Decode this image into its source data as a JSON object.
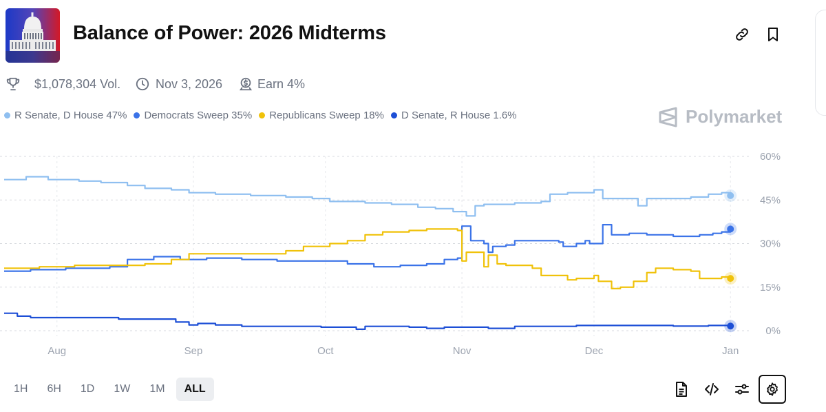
{
  "header": {
    "title": "Balance of Power: 2026 Midterms"
  },
  "meta": {
    "volume": "$1,078,304 Vol.",
    "date": "Nov 3, 2026",
    "earn": "Earn 4%"
  },
  "brand": {
    "name": "Polymarket"
  },
  "legend": [
    {
      "label": "R Senate, D House 47%",
      "color": "#8fbff0"
    },
    {
      "label": "Democrats Sweep 35%",
      "color": "#3b73e8"
    },
    {
      "label": "Republicans Sweep 18%",
      "color": "#f0c20a"
    },
    {
      "label": "D Senate, R House 1.6%",
      "color": "#1d4fd6"
    }
  ],
  "range_buttons": [
    "1H",
    "6H",
    "1D",
    "1W",
    "1M",
    "ALL"
  ],
  "range_active": "ALL",
  "chart_data": {
    "type": "line",
    "title": "Balance of Power: 2026 Midterms",
    "x_unit": "days since Jul 26",
    "x_ticks": [
      {
        "label": "Aug",
        "day": 6
      },
      {
        "label": "Sep",
        "day": 37
      },
      {
        "label": "Oct",
        "day": 67
      },
      {
        "label": "Nov",
        "day": 98
      },
      {
        "label": "Dec",
        "day": 128
      },
      {
        "label": "Jan",
        "day": 159
      }
    ],
    "xlim": [
      -6,
      161
    ],
    "y_ticks": [
      "0%",
      "15%",
      "30%",
      "45%",
      "60%"
    ],
    "ylim": [
      0,
      60
    ],
    "grid": true,
    "series": [
      {
        "name": "R Senate, D House",
        "color": "#8fbff0",
        "last": 47,
        "points": [
          [
            -6,
            52
          ],
          [
            -1,
            53
          ],
          [
            4,
            52
          ],
          [
            11,
            51.5
          ],
          [
            16,
            51
          ],
          [
            22,
            50
          ],
          [
            26,
            49
          ],
          [
            32,
            48.5
          ],
          [
            36,
            47.5
          ],
          [
            42,
            47
          ],
          [
            50,
            46.5
          ],
          [
            58,
            46
          ],
          [
            64,
            45.5
          ],
          [
            68,
            44.5
          ],
          [
            76,
            44
          ],
          [
            82,
            43.5
          ],
          [
            88,
            42.5
          ],
          [
            92,
            42
          ],
          [
            96,
            41
          ],
          [
            99,
            39.5
          ],
          [
            101,
            43
          ],
          [
            103,
            43.5
          ],
          [
            110,
            44
          ],
          [
            116,
            44.5
          ],
          [
            118,
            47
          ],
          [
            122,
            47.5
          ],
          [
            128,
            48.5
          ],
          [
            130,
            45.5
          ],
          [
            134,
            45.5
          ],
          [
            138,
            43
          ],
          [
            140,
            45.5
          ],
          [
            146,
            45.5
          ],
          [
            150,
            46
          ],
          [
            154,
            47
          ],
          [
            157,
            47.5
          ],
          [
            159,
            46.5
          ]
        ]
      },
      {
        "name": "Democrats Sweep",
        "color": "#3b73e8",
        "last": 35,
        "points": [
          [
            -6,
            20.5
          ],
          [
            0,
            21
          ],
          [
            8,
            21.5
          ],
          [
            18,
            22
          ],
          [
            22,
            24.5
          ],
          [
            28,
            25.5
          ],
          [
            34,
            24.5
          ],
          [
            40,
            25
          ],
          [
            48,
            24.5
          ],
          [
            56,
            24
          ],
          [
            64,
            24
          ],
          [
            72,
            23
          ],
          [
            78,
            22
          ],
          [
            84,
            22.5
          ],
          [
            90,
            23
          ],
          [
            94,
            24.5
          ],
          [
            97,
            25
          ],
          [
            98,
            36
          ],
          [
            100,
            31
          ],
          [
            103,
            30
          ],
          [
            104,
            27
          ],
          [
            105,
            29
          ],
          [
            108,
            29.5
          ],
          [
            110,
            31
          ],
          [
            116,
            31
          ],
          [
            120,
            30.5
          ],
          [
            121,
            29
          ],
          [
            124,
            30
          ],
          [
            126,
            31
          ],
          [
            127,
            30
          ],
          [
            130,
            36.5
          ],
          [
            132,
            33
          ],
          [
            136,
            33.5
          ],
          [
            140,
            33
          ],
          [
            146,
            32.5
          ],
          [
            152,
            33
          ],
          [
            155,
            33.5
          ],
          [
            157,
            34
          ],
          [
            159,
            35
          ]
        ]
      },
      {
        "name": "Republicans Sweep",
        "color": "#f0c20a",
        "last": 18,
        "points": [
          [
            -6,
            21.5
          ],
          [
            2,
            22
          ],
          [
            10,
            22.5
          ],
          [
            18,
            22.5
          ],
          [
            26,
            23
          ],
          [
            32,
            24.5
          ],
          [
            36,
            26.5
          ],
          [
            44,
            26.5
          ],
          [
            52,
            26.5
          ],
          [
            58,
            27.5
          ],
          [
            62,
            29
          ],
          [
            68,
            30
          ],
          [
            72,
            31
          ],
          [
            76,
            33
          ],
          [
            80,
            34
          ],
          [
            86,
            34.5
          ],
          [
            90,
            35
          ],
          [
            94,
            35
          ],
          [
            97,
            34.5
          ],
          [
            98,
            24
          ],
          [
            99,
            27
          ],
          [
            101,
            27
          ],
          [
            103,
            22
          ],
          [
            104,
            26
          ],
          [
            106,
            23
          ],
          [
            108,
            22.5
          ],
          [
            110,
            22.5
          ],
          [
            114,
            21.5
          ],
          [
            116,
            19
          ],
          [
            119,
            19
          ],
          [
            122,
            17.5
          ],
          [
            124,
            18
          ],
          [
            126,
            18
          ],
          [
            128,
            19
          ],
          [
            129,
            17
          ],
          [
            132,
            14.5
          ],
          [
            134,
            15
          ],
          [
            137,
            17
          ],
          [
            140,
            20
          ],
          [
            142,
            21.5
          ],
          [
            146,
            21
          ],
          [
            150,
            20.5
          ],
          [
            152,
            18
          ],
          [
            156,
            18
          ],
          [
            157,
            18.5
          ],
          [
            159,
            18
          ]
        ]
      },
      {
        "name": "D Senate, R House",
        "color": "#1d4fd6",
        "last": 1.6,
        "points": [
          [
            -6,
            6
          ],
          [
            -3,
            5
          ],
          [
            0,
            4.5
          ],
          [
            10,
            4.5
          ],
          [
            20,
            4
          ],
          [
            30,
            4
          ],
          [
            33,
            3
          ],
          [
            36,
            2
          ],
          [
            38,
            2.5
          ],
          [
            42,
            2
          ],
          [
            48,
            1.5
          ],
          [
            56,
            1.5
          ],
          [
            62,
            1.5
          ],
          [
            66,
            1.2
          ],
          [
            72,
            1.2
          ],
          [
            74,
            0.5
          ],
          [
            76,
            1.5
          ],
          [
            82,
            1.5
          ],
          [
            86,
            1.2
          ],
          [
            90,
            0.8
          ],
          [
            94,
            1.2
          ],
          [
            100,
            1.2
          ],
          [
            104,
            0.8
          ],
          [
            110,
            1.5
          ],
          [
            116,
            1.5
          ],
          [
            124,
            1.8
          ],
          [
            132,
            1.8
          ],
          [
            140,
            1.8
          ],
          [
            146,
            1.6
          ],
          [
            150,
            1.6
          ],
          [
            154,
            1.8
          ],
          [
            157,
            1.8
          ],
          [
            159,
            1.6
          ]
        ]
      }
    ]
  }
}
